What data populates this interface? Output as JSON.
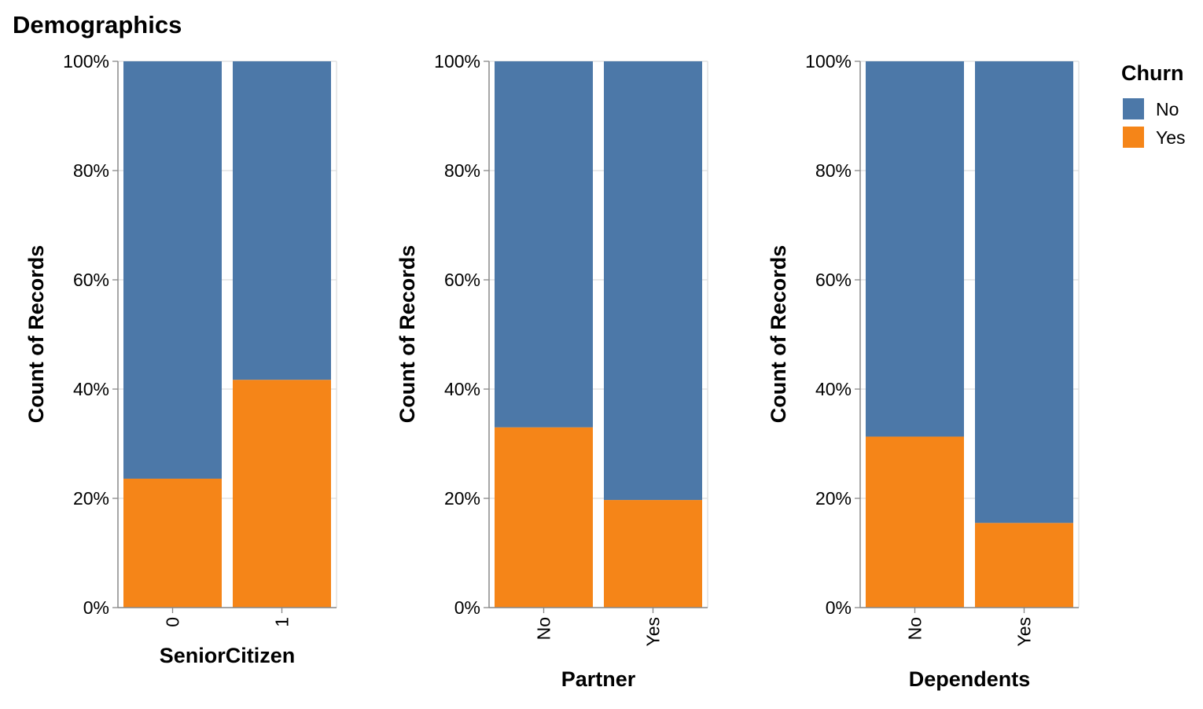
{
  "title": "Demographics",
  "legend": {
    "title": "Churn",
    "placement": "top-right",
    "items": [
      {
        "label": "No",
        "color": "#4c78a8"
      },
      {
        "label": "Yes",
        "color": "#f58518"
      }
    ]
  },
  "chart_data": [
    {
      "type": "bar",
      "stacked": true,
      "normalized": true,
      "xlabel": "SeniorCitizen",
      "ylabel": "Count of Records",
      "categories": [
        "0",
        "1"
      ],
      "series": [
        {
          "name": "Yes",
          "values": [
            23.6,
            41.7
          ]
        },
        {
          "name": "No",
          "values": [
            76.4,
            58.3
          ]
        }
      ],
      "ylim": [
        0,
        100
      ],
      "yticks": [
        "0%",
        "20%",
        "40%",
        "60%",
        "80%",
        "100%"
      ],
      "grid": true
    },
    {
      "type": "bar",
      "stacked": true,
      "normalized": true,
      "xlabel": "Partner",
      "ylabel": "Count of Records",
      "categories": [
        "No",
        "Yes"
      ],
      "series": [
        {
          "name": "Yes",
          "values": [
            33.0,
            19.7
          ]
        },
        {
          "name": "No",
          "values": [
            67.0,
            80.3
          ]
        }
      ],
      "ylim": [
        0,
        100
      ],
      "yticks": [
        "0%",
        "20%",
        "40%",
        "60%",
        "80%",
        "100%"
      ],
      "grid": true
    },
    {
      "type": "bar",
      "stacked": true,
      "normalized": true,
      "xlabel": "Dependents",
      "ylabel": "Count of Records",
      "categories": [
        "No",
        "Yes"
      ],
      "series": [
        {
          "name": "Yes",
          "values": [
            31.3,
            15.5
          ]
        },
        {
          "name": "No",
          "values": [
            68.7,
            84.5
          ]
        }
      ],
      "ylim": [
        0,
        100
      ],
      "yticks": [
        "0%",
        "20%",
        "40%",
        "60%",
        "80%",
        "100%"
      ],
      "grid": true
    }
  ]
}
